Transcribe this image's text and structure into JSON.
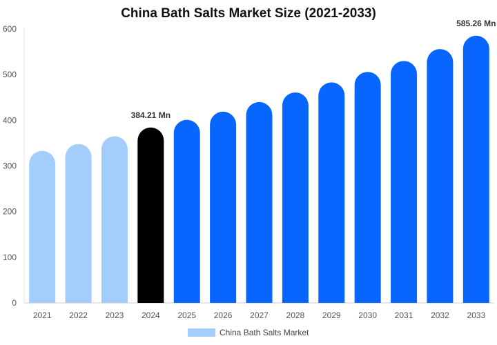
{
  "chart_data": {
    "type": "bar",
    "title": "China Bath Salts Market Size (2021-2033)",
    "xlabel": "",
    "ylabel": "",
    "ylim": [
      0,
      600
    ],
    "yticks": [
      0,
      100,
      200,
      300,
      400,
      500,
      600
    ],
    "categories": [
      "2021",
      "2022",
      "2023",
      "2024",
      "2025",
      "2026",
      "2027",
      "2028",
      "2029",
      "2030",
      "2031",
      "2032",
      "2033"
    ],
    "series": [
      {
        "name": "China Bath Salts Market",
        "values": [
          333,
          348,
          365,
          384.21,
          401,
          419,
          440,
          461,
          483,
          506,
          530,
          556,
          585.26
        ]
      }
    ],
    "data_labels": [
      {
        "category": "2024",
        "text": "384.21 Mn"
      },
      {
        "category": "2033",
        "text": "585.26 Mn"
      }
    ],
    "bar_colors": {
      "historical": "#a3cdfd",
      "current": "#000000",
      "forecast": "#0866ff"
    },
    "historical_categories": [
      "2021",
      "2022",
      "2023"
    ],
    "highlight_category": "2024",
    "grid": false,
    "legend": {
      "position": "bottom",
      "color": "#a3cdfd"
    }
  }
}
